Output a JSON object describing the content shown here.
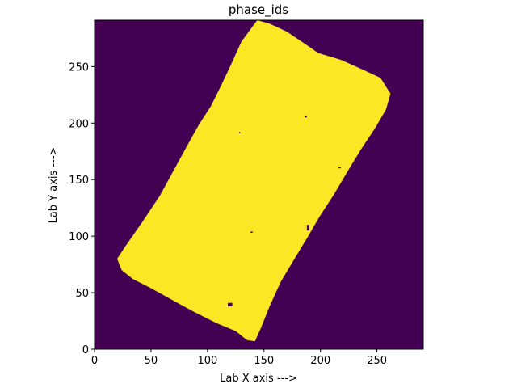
{
  "chart_data": {
    "type": "heatmap",
    "title": "phase_ids",
    "xlabel": "Lab X axis --->",
    "ylabel": "Lab Y axis --->",
    "xlim": [
      0,
      291
    ],
    "ylim": [
      0,
      291
    ],
    "x_ticks": [
      0,
      50,
      100,
      150,
      200,
      250
    ],
    "y_ticks": [
      0,
      50,
      100,
      150,
      200,
      250
    ],
    "colormap": "viridis",
    "background_color": "#440154",
    "phase_color": "#fde725",
    "background_phase_id": 0,
    "grain_phase_id": 1,
    "grain_region_vertices": [
      [
        144,
        291
      ],
      [
        155,
        288
      ],
      [
        170,
        281
      ],
      [
        185,
        271
      ],
      [
        198,
        262
      ],
      [
        218,
        256
      ],
      [
        238,
        247
      ],
      [
        253,
        240
      ],
      [
        262,
        226
      ],
      [
        258,
        212
      ],
      [
        248,
        195
      ],
      [
        236,
        177
      ],
      [
        225,
        159
      ],
      [
        212,
        137
      ],
      [
        199,
        117
      ],
      [
        188,
        98
      ],
      [
        177,
        80
      ],
      [
        165,
        60
      ],
      [
        155,
        38
      ],
      [
        147,
        18
      ],
      [
        142,
        7
      ],
      [
        135,
        8
      ],
      [
        125,
        16
      ],
      [
        108,
        23
      ],
      [
        88,
        33
      ],
      [
        68,
        44
      ],
      [
        50,
        54
      ],
      [
        34,
        62
      ],
      [
        24,
        70
      ],
      [
        20,
        80
      ],
      [
        28,
        92
      ],
      [
        42,
        112
      ],
      [
        58,
        136
      ],
      [
        70,
        158
      ],
      [
        82,
        180
      ],
      [
        92,
        198
      ],
      [
        103,
        215
      ],
      [
        112,
        233
      ],
      [
        121,
        252
      ],
      [
        130,
        272
      ]
    ],
    "holes": [
      [
        [
          118,
          41
        ],
        [
          122,
          41
        ],
        [
          122,
          38
        ],
        [
          118,
          38
        ]
      ],
      [
        [
          188,
          110
        ],
        [
          190,
          110
        ],
        [
          190,
          105
        ],
        [
          188,
          105
        ]
      ],
      [
        [
          128,
          192
        ],
        [
          129,
          192
        ],
        [
          129,
          191
        ],
        [
          128,
          191
        ]
      ],
      [
        [
          186,
          206
        ],
        [
          188,
          206
        ],
        [
          188,
          205
        ],
        [
          186,
          205
        ]
      ],
      [
        [
          138,
          104
        ],
        [
          140,
          104
        ],
        [
          140,
          103
        ],
        [
          138,
          103
        ]
      ],
      [
        [
          216,
          161
        ],
        [
          218,
          161
        ],
        [
          218,
          160
        ],
        [
          216,
          160
        ]
      ]
    ]
  }
}
